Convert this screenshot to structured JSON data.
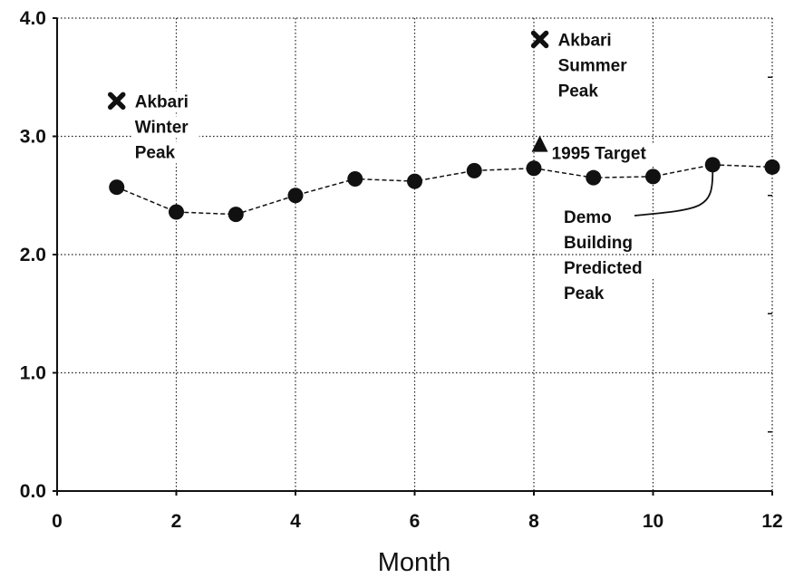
{
  "chart_data": {
    "type": "line",
    "title": "",
    "xlabel": "Month",
    "ylabel": "",
    "xlim": [
      0,
      12
    ],
    "ylim": [
      0,
      4
    ],
    "x_ticks": [
      "0",
      "2",
      "4",
      "6",
      "8",
      "10",
      "12"
    ],
    "y_ticks": [
      "0.0",
      "1.0",
      "2.0",
      "3.0",
      "4.0"
    ],
    "grid": true,
    "series": [
      {
        "name": "Demo Building Predicted Peak",
        "x": [
          1,
          2,
          3,
          4,
          5,
          6,
          7,
          8,
          9,
          10,
          11,
          12
        ],
        "y": [
          2.57,
          2.36,
          2.34,
          2.5,
          2.64,
          2.62,
          2.71,
          2.73,
          2.65,
          2.66,
          2.76,
          2.74
        ]
      }
    ],
    "points": [
      {
        "label": "Akbari Winter Peak",
        "lines": [
          "Akbari",
          "Winter",
          "Peak"
        ],
        "x": 1,
        "y": 3.3,
        "marker": "x"
      },
      {
        "label": "Akbari Summer Peak",
        "lines": [
          "Akbari",
          "Summer",
          "Peak"
        ],
        "x": 8.1,
        "y": 3.82,
        "marker": "x"
      },
      {
        "label": "1995 Target",
        "lines": [
          "1995 Target"
        ],
        "x": 8.1,
        "y": 2.93,
        "marker": "triangle"
      }
    ],
    "annotations": [
      {
        "text": "Demo Building Predicted Peak",
        "lines": [
          "Demo",
          "Building",
          "Predicted",
          "Peak"
        ],
        "points_to": {
          "x": 11,
          "y": 2.76
        }
      }
    ]
  }
}
